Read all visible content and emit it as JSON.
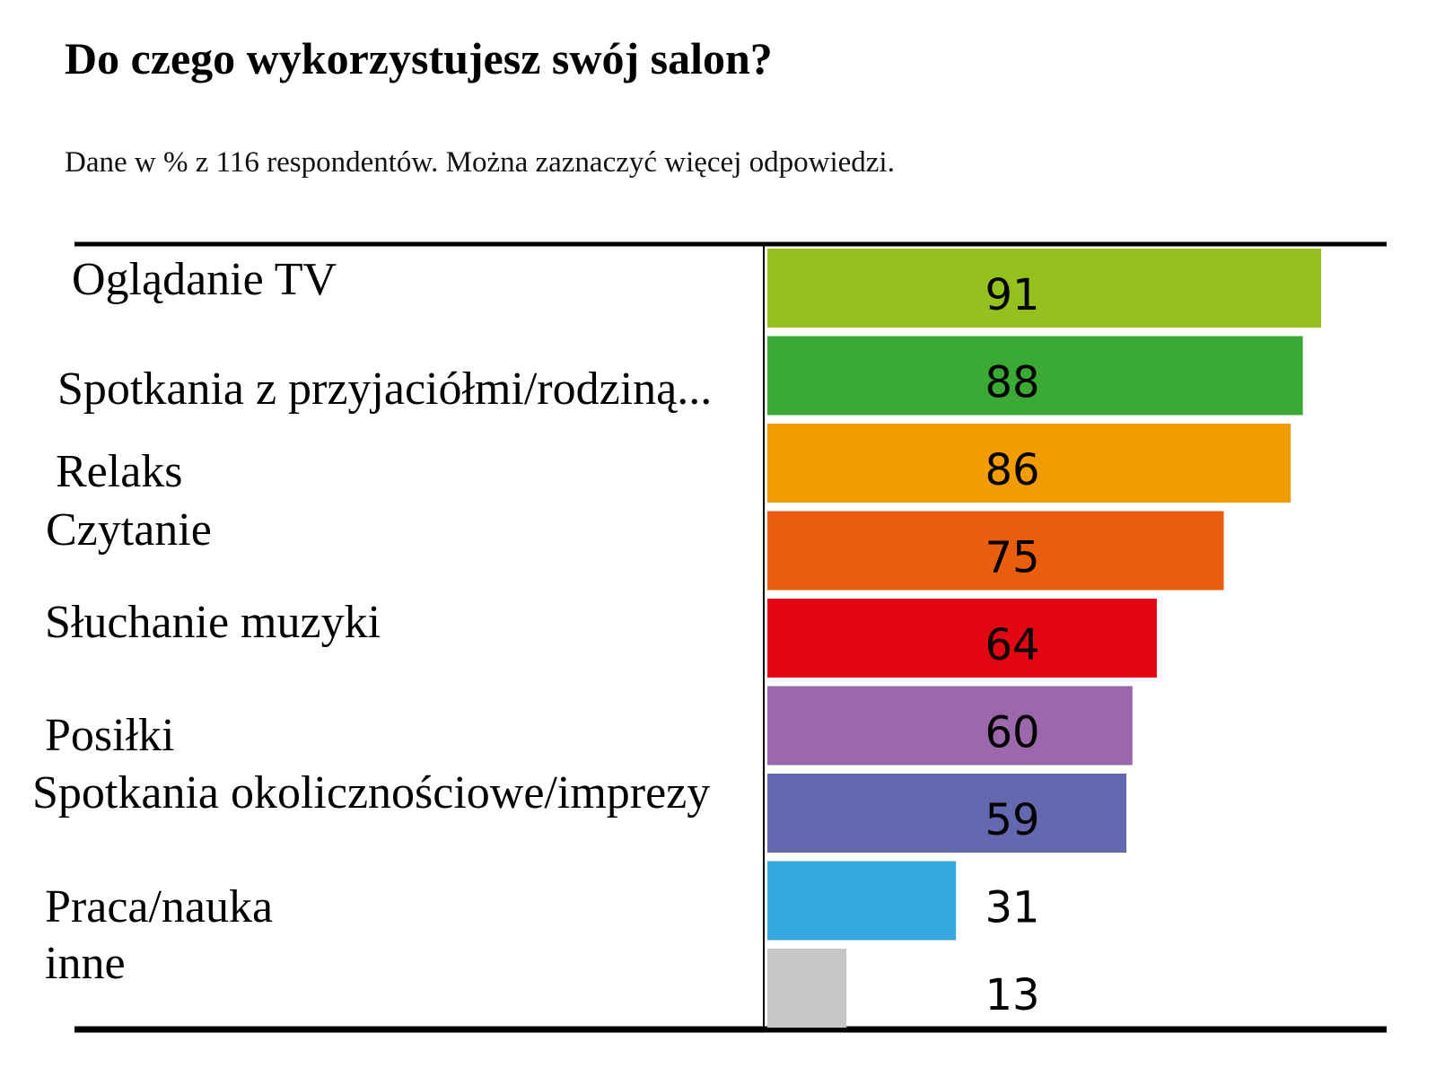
{
  "chart_data": {
    "type": "bar",
    "orientation": "horizontal",
    "title": "Do czego wykorzystujesz swój salon?",
    "subtitle": "Dane w % z 116 respondentów. Można zaznaczyć więcej odpowiedzi.",
    "categories": [
      "Oglądanie TV",
      "Spotkania z przyjaciółmi/rodziną...",
      "Relaks",
      "Czytanie",
      "Słuchanie muzyki",
      "Posiłki",
      "Spotkania okolicznościowe/imprezy",
      "Praca/nauka",
      "inne"
    ],
    "values": [
      91,
      88,
      86,
      75,
      64,
      60,
      59,
      31,
      13
    ],
    "value_labels": [
      "91",
      "88",
      "86",
      "75",
      "64",
      "60",
      "59",
      "31",
      "13"
    ],
    "colors": [
      "#95c11f",
      "#3aaa35",
      "#f39c00",
      "#e95d0f",
      "#e30613",
      "#9d68ab",
      "#6468ae",
      "#36a9e1",
      "#c6c6c6"
    ],
    "xlim": [
      0,
      100
    ],
    "grid": false,
    "legend": "none"
  }
}
